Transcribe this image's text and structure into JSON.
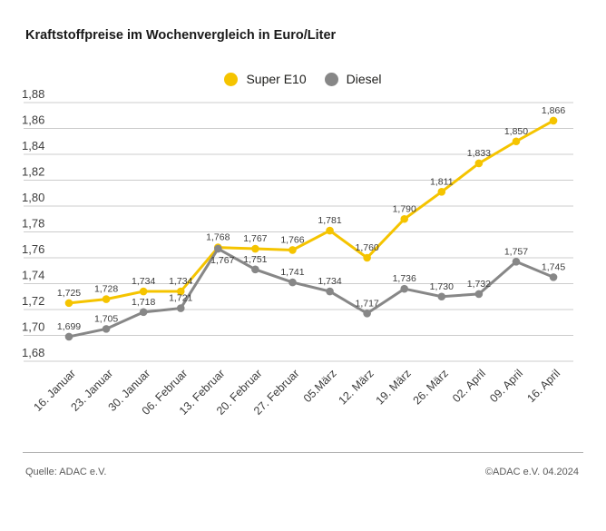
{
  "title": "Kraftstoffpreise im Wochenvergleich in Euro/Liter",
  "footer": {
    "source": "Quelle: ADAC e.V.",
    "copyright": "©ADAC e.V. 04.2024"
  },
  "colors": {
    "super_e10": "#f5c400",
    "diesel": "#878787",
    "grid": "#cccccc",
    "axis_text": "#3c3c3c",
    "value_text": "#3c3c3c"
  },
  "chart_data": {
    "type": "line",
    "title": "Kraftstoffpreise im Wochenvergleich in Euro/Liter",
    "categories": [
      "16. Januar",
      "23. Januar",
      "30. Januar",
      "06. Februar",
      "13. Februar",
      "20. Februar",
      "27. Februar",
      "05.März",
      "12. März",
      "19. März",
      "26. März",
      "02. April",
      "09. April",
      "16. April"
    ],
    "series": [
      {
        "name": "Super E10",
        "color_key": "super_e10",
        "values": [
          1.725,
          1.728,
          1.734,
          1.734,
          1.768,
          1.767,
          1.766,
          1.781,
          1.76,
          1.79,
          1.811,
          1.833,
          1.85,
          1.866
        ],
        "label_below_indices": []
      },
      {
        "name": "Diesel",
        "color_key": "diesel",
        "values": [
          1.699,
          1.705,
          1.718,
          1.721,
          1.767,
          1.751,
          1.741,
          1.734,
          1.717,
          1.736,
          1.73,
          1.732,
          1.757,
          1.745
        ],
        "label_below_indices": [
          4
        ]
      }
    ],
    "xlabel": "",
    "ylabel": "Euro/Liter",
    "ylim": [
      1.68,
      1.88
    ],
    "ytick_step": 0.02,
    "decimal_separator": ",",
    "grid": true,
    "legend_position": "top-center",
    "value_labels": true
  }
}
